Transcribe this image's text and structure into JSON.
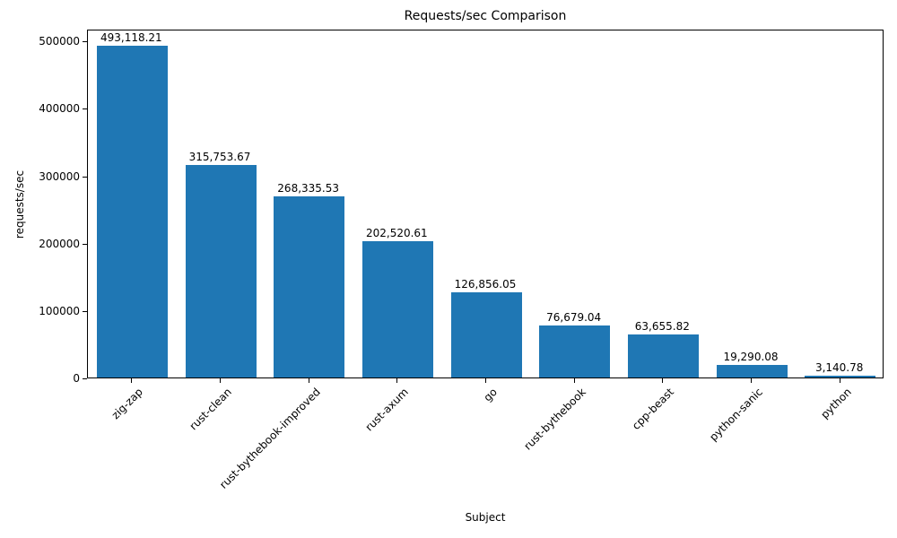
{
  "chart_data": {
    "type": "bar",
    "title": "Requests/sec Comparison",
    "xlabel": "Subject",
    "ylabel": "requests/sec",
    "categories": [
      "zig-zap",
      "rust-clean",
      "rust-bythebook-improved",
      "rust-axum",
      "go",
      "rust-bythebook",
      "cpp-beast",
      "python-sanic",
      "python"
    ],
    "values": [
      493118.21,
      315753.67,
      268335.53,
      202520.61,
      126856.05,
      76679.04,
      63655.82,
      19290.08,
      3140.78
    ],
    "value_labels": [
      "493,118.21",
      "315,753.67",
      "268,335.53",
      "202,520.61",
      "126,856.05",
      "76,679.04",
      "63,655.82",
      "19,290.08",
      "3,140.78"
    ],
    "bar_color": "#1f77b4",
    "ylim": [
      0,
      517774
    ],
    "yticks": [
      0,
      100000,
      200000,
      300000,
      400000,
      500000
    ],
    "ytick_labels": [
      "0",
      "100000",
      "200000",
      "300000",
      "400000",
      "500000"
    ],
    "grid": false,
    "legend": false,
    "xtick_rotation": 45
  }
}
